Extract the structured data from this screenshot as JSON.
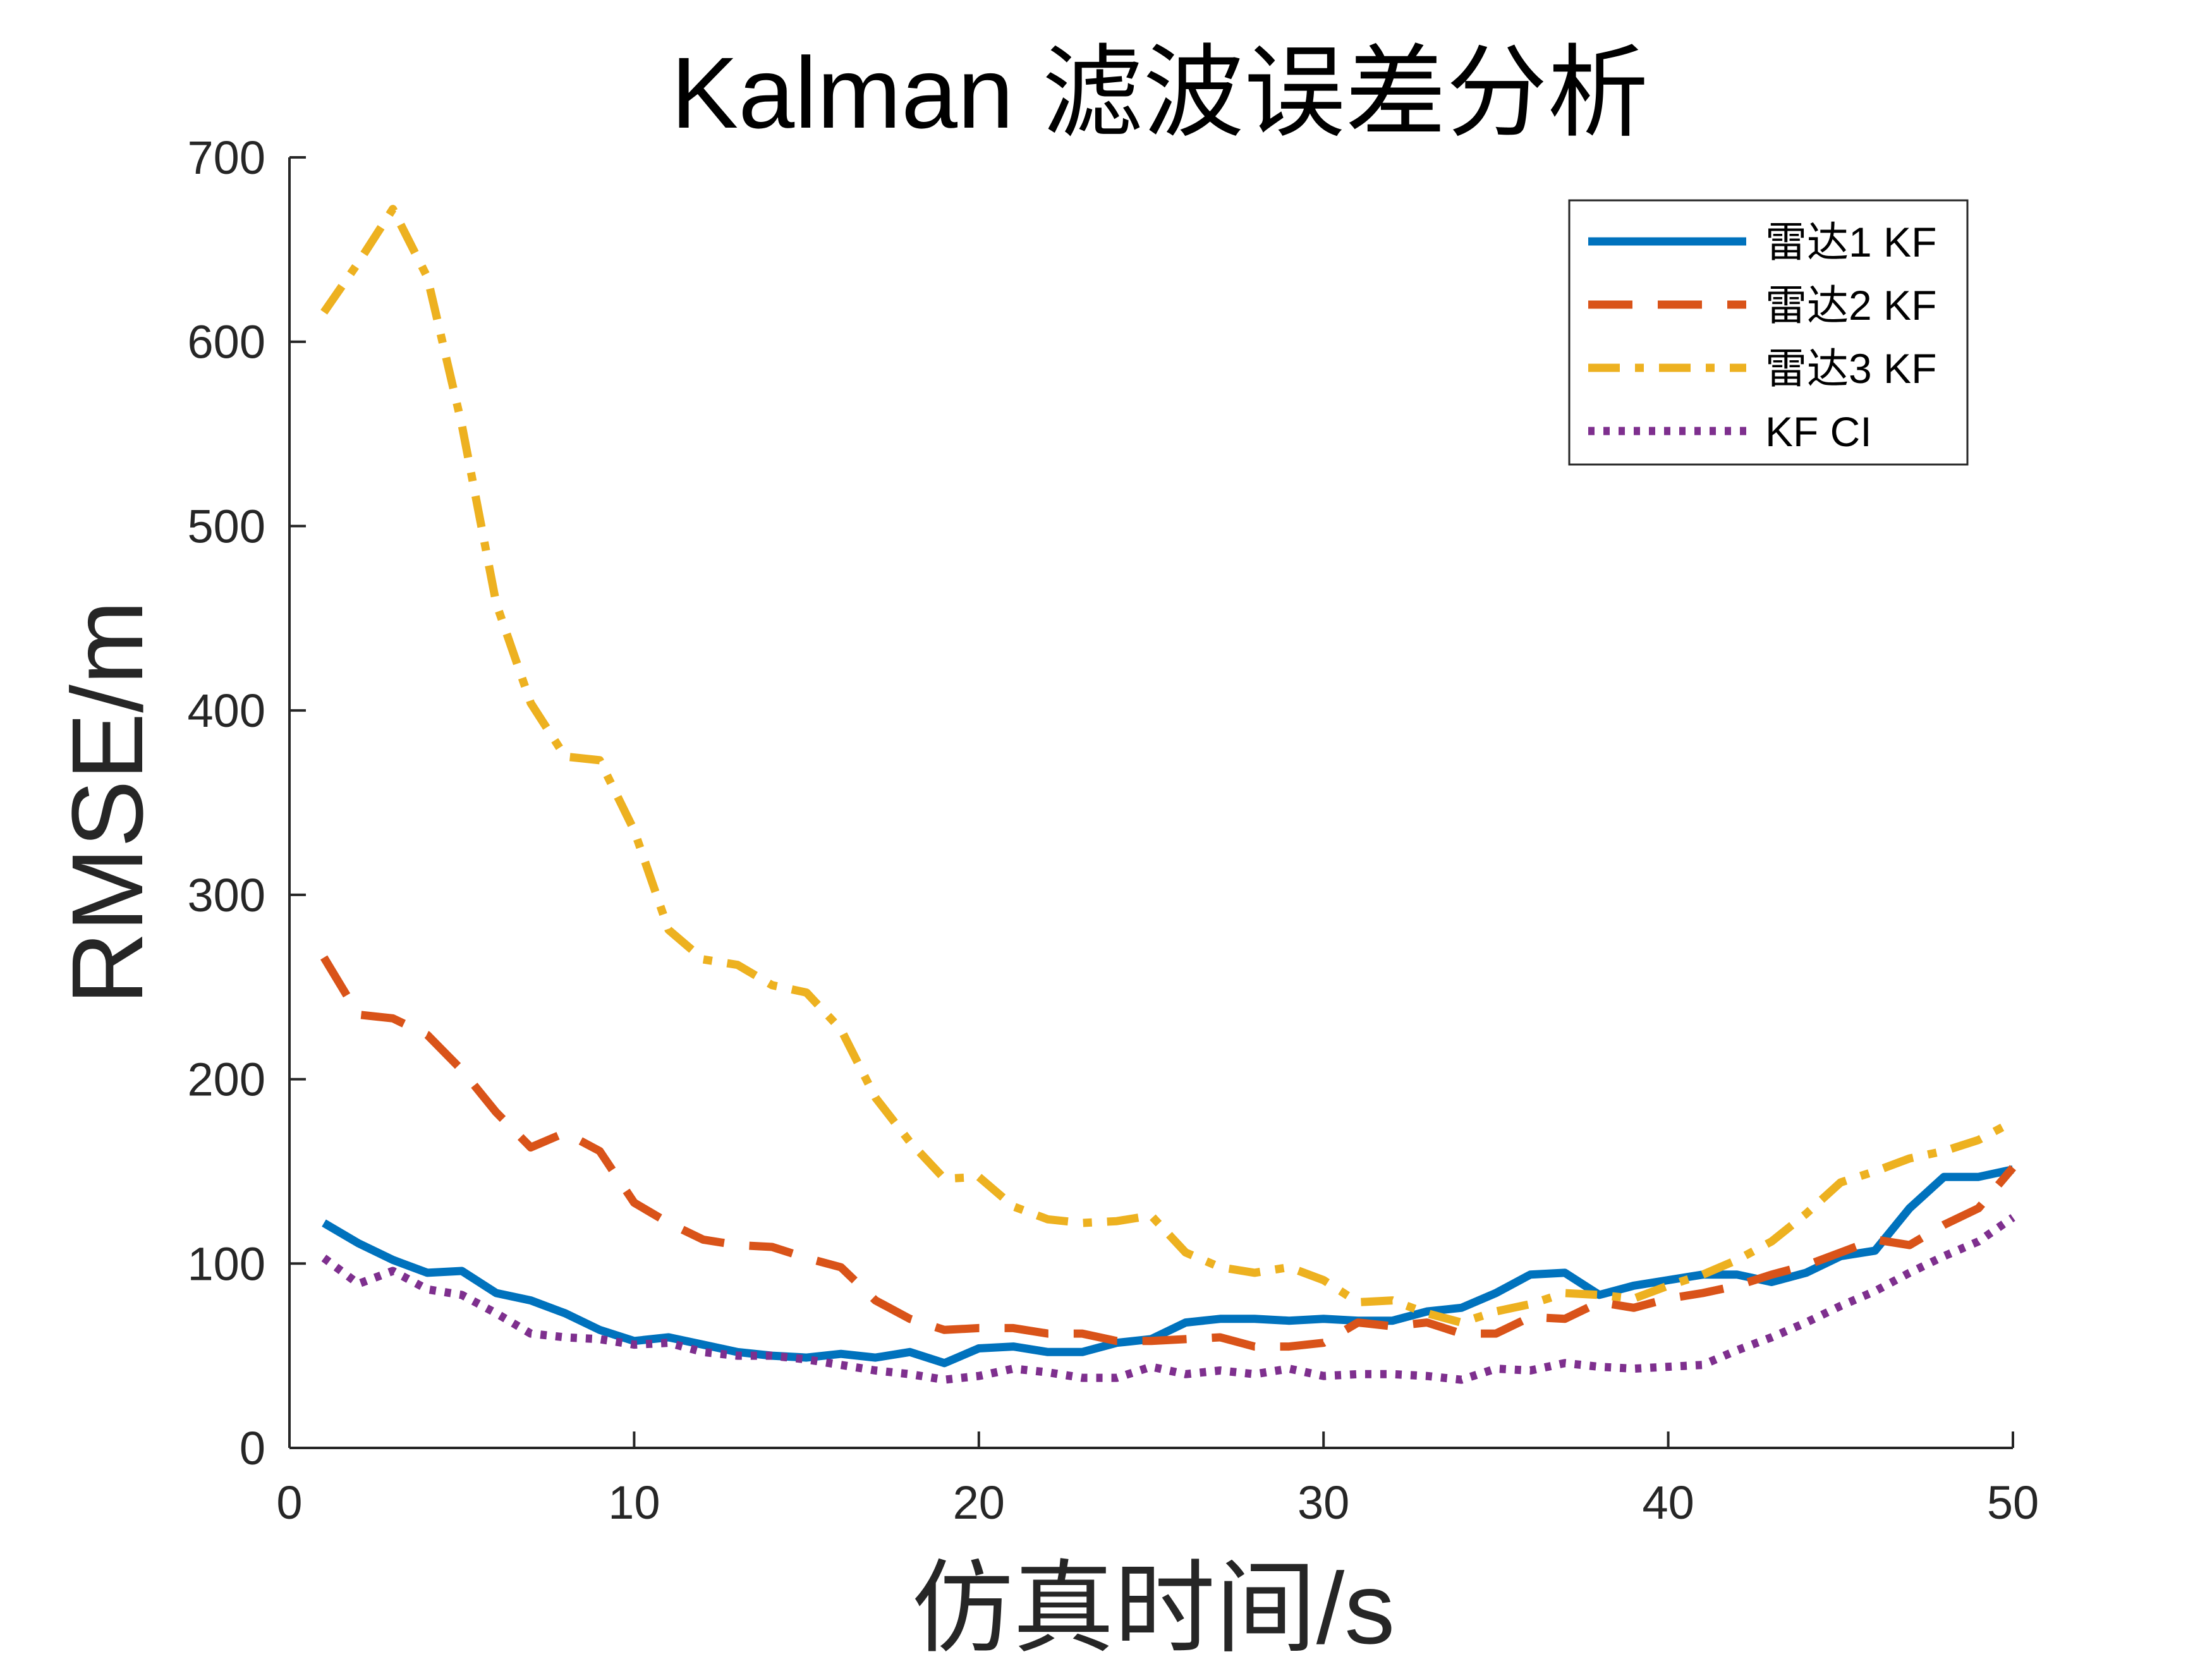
{
  "chart_data": {
    "type": "line",
    "title": "Kalman 滤波误差分析",
    "xlabel": "仿真时间/s",
    "ylabel": "RMSE/m",
    "xlim": [
      0,
      50
    ],
    "ylim": [
      0,
      700
    ],
    "xticks": [
      0,
      10,
      20,
      30,
      40,
      50
    ],
    "yticks": [
      0,
      100,
      200,
      300,
      400,
      500,
      600,
      700
    ],
    "grid": false,
    "legend_position": "top-right",
    "x": [
      1,
      2,
      3,
      4,
      5,
      6,
      7,
      8,
      9,
      10,
      11,
      12,
      13,
      14,
      15,
      16,
      17,
      18,
      19,
      20,
      21,
      22,
      23,
      24,
      25,
      26,
      27,
      28,
      29,
      30,
      31,
      32,
      33,
      34,
      35,
      36,
      37,
      38,
      39,
      40,
      41,
      42,
      43,
      44,
      45,
      46,
      47,
      48,
      49,
      50
    ],
    "series": [
      {
        "name": "雷达1 KF",
        "color": "#0072BD",
        "style": "solid",
        "values": [
          122,
          111,
          102,
          95,
          96,
          84,
          80,
          73,
          64,
          58,
          60,
          56,
          52,
          50,
          49,
          51,
          49,
          52,
          46,
          54,
          55,
          52,
          52,
          57,
          59,
          68,
          70,
          70,
          69,
          70,
          69,
          69,
          74,
          76,
          84,
          94,
          95,
          83,
          88,
          91,
          94,
          94,
          90,
          95,
          104,
          107,
          130,
          147,
          147,
          151
        ]
      },
      {
        "name": "雷达2 KF",
        "color": "#D95319",
        "style": "dashed",
        "values": [
          266,
          235,
          233,
          224,
          205,
          182,
          163,
          171,
          161,
          133,
          122,
          113,
          110,
          109,
          103,
          98,
          80,
          70,
          64,
          65,
          65,
          62,
          62,
          58,
          58,
          59,
          60,
          55,
          55,
          57,
          68,
          66,
          68,
          62,
          62,
          71,
          70,
          79,
          76,
          81,
          84,
          88,
          94,
          99,
          106,
          113,
          110,
          121,
          130,
          152
        ]
      },
      {
        "name": "雷达3 KF",
        "color": "#EDB120",
        "style": "dash-dot",
        "values": [
          616,
          643,
          672,
          635,
          555,
          458,
          404,
          375,
          373,
          335,
          281,
          265,
          262,
          251,
          247,
          227,
          190,
          166,
          146,
          147,
          131,
          124,
          122,
          123,
          126,
          106,
          98,
          95,
          98,
          91,
          79,
          80,
          73,
          68,
          74,
          78,
          84,
          83,
          81,
          88,
          94,
          102,
          112,
          127,
          144,
          150,
          157,
          161,
          167,
          177
        ]
      },
      {
        "name": "KF CI",
        "color": "#7E2F8E",
        "style": "dotted",
        "values": [
          103,
          89,
          96,
          86,
          83,
          73,
          62,
          60,
          59,
          56,
          57,
          52,
          50,
          50,
          48,
          45,
          42,
          40,
          37,
          39,
          43,
          41,
          38,
          38,
          44,
          40,
          42,
          40,
          43,
          39,
          40,
          40,
          39,
          37,
          43,
          42,
          46,
          44,
          43,
          44,
          45,
          53,
          60,
          68,
          77,
          85,
          95,
          104,
          112,
          125
        ]
      }
    ]
  }
}
